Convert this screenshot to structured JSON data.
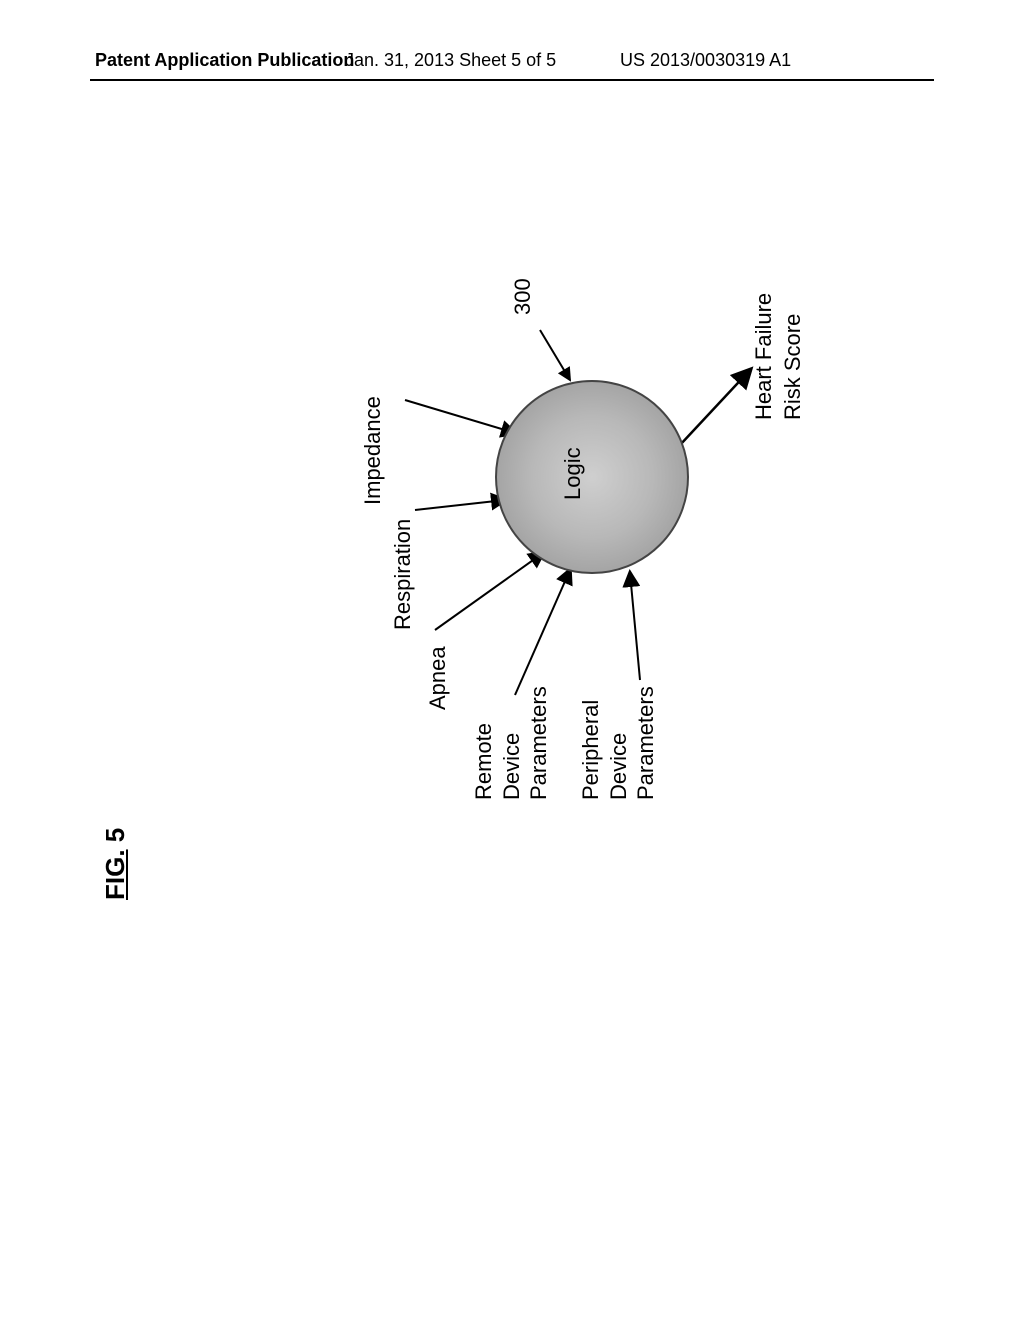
{
  "header": {
    "left": "Patent Application Publication",
    "center": "Jan. 31, 2013  Sheet 5 of 5",
    "right": "US 2013/0030319 A1"
  },
  "figure": {
    "label_prefix": "FIG.",
    "label_number": " 5",
    "reference_number": "300"
  },
  "diagram": {
    "center_label": "Logic",
    "inputs": {
      "impedance": "Impedance",
      "respiration": "Respiration",
      "apnea": "Apnea",
      "remote_device_params": "Remote\nDevice\nParameters",
      "peripheral_device_params": "Peripheral\nDevice\nParameters"
    },
    "output": "Heart Failure\nRisk Score"
  },
  "style": {
    "background": "#ffffff",
    "ink": "#000000",
    "circle_fill_start": "#cfcfcf",
    "circle_fill_end": "#8a8a8a",
    "circle_border": "#444444",
    "font_size_body": 22,
    "font_size_header": 18,
    "font_size_figlabel": 26
  }
}
